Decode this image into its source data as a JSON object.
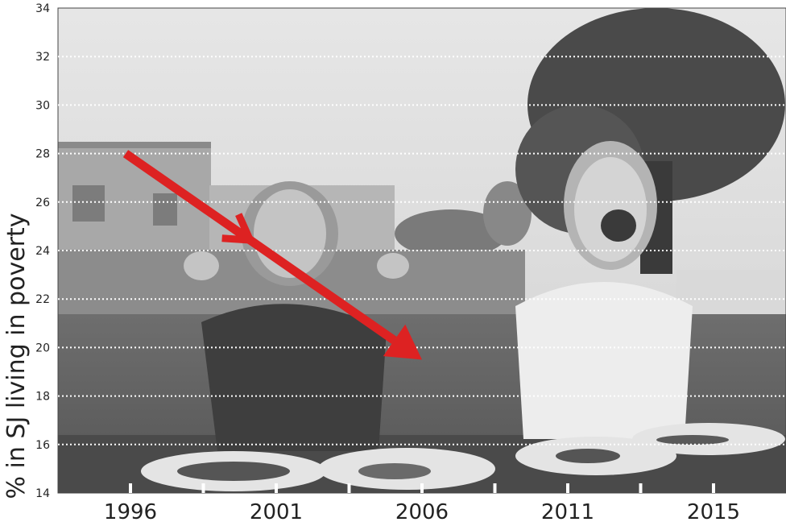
{
  "chart_data": {
    "type": "line",
    "ylabel": "% in SJ living in poverty",
    "xlabel": "",
    "ylim": [
      14,
      34
    ],
    "y_ticks": [
      14,
      16,
      18,
      20,
      22,
      24,
      26,
      28,
      30,
      32,
      34
    ],
    "x_tick_labels": [
      "1996",
      "2001",
      "2006",
      "2011",
      "2015"
    ],
    "grid": "dotted horizontal gridlines",
    "background": "grayscale photo of two children with chocolate-smeared faces at an outdoor table",
    "series": [
      {
        "points": [
          {
            "x": "1996",
            "y": 28
          },
          {
            "x": "2006",
            "y": 19.5
          }
        ],
        "style": "arrow"
      }
    ],
    "colors": {
      "arrow": "#dd2222",
      "grid": "#ffffff",
      "axis": "#333333",
      "tick_label": "#222222"
    }
  }
}
